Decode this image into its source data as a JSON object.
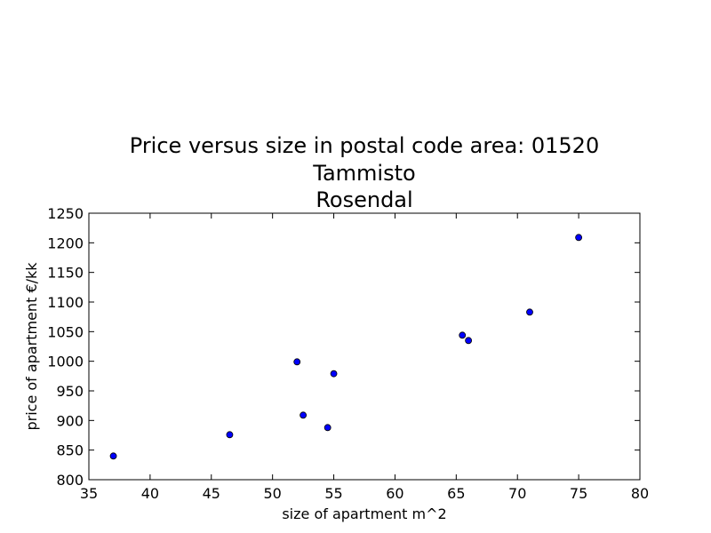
{
  "chart_data": {
    "type": "scatter",
    "title_lines": [
      "Price versus size in postal code area: 01520",
      "Tammisto",
      "Rosendal"
    ],
    "xlabel": "size of apartment m^2",
    "ylabel": "price of apartment €/kk",
    "xlim": [
      35,
      80
    ],
    "ylim": [
      800,
      1250
    ],
    "xticks": [
      35,
      40,
      45,
      50,
      55,
      60,
      65,
      70,
      75,
      80
    ],
    "yticks": [
      800,
      850,
      900,
      950,
      1000,
      1050,
      1100,
      1150,
      1200,
      1250
    ],
    "points": [
      {
        "x": 37,
        "y": 840
      },
      {
        "x": 46.5,
        "y": 876
      },
      {
        "x": 52,
        "y": 999
      },
      {
        "x": 52.5,
        "y": 909
      },
      {
        "x": 54.5,
        "y": 888
      },
      {
        "x": 55,
        "y": 979
      },
      {
        "x": 65.5,
        "y": 1044
      },
      {
        "x": 66,
        "y": 1035
      },
      {
        "x": 71,
        "y": 1083
      },
      {
        "x": 75,
        "y": 1209
      }
    ],
    "marker_color": "#0000ff",
    "grid": false
  }
}
